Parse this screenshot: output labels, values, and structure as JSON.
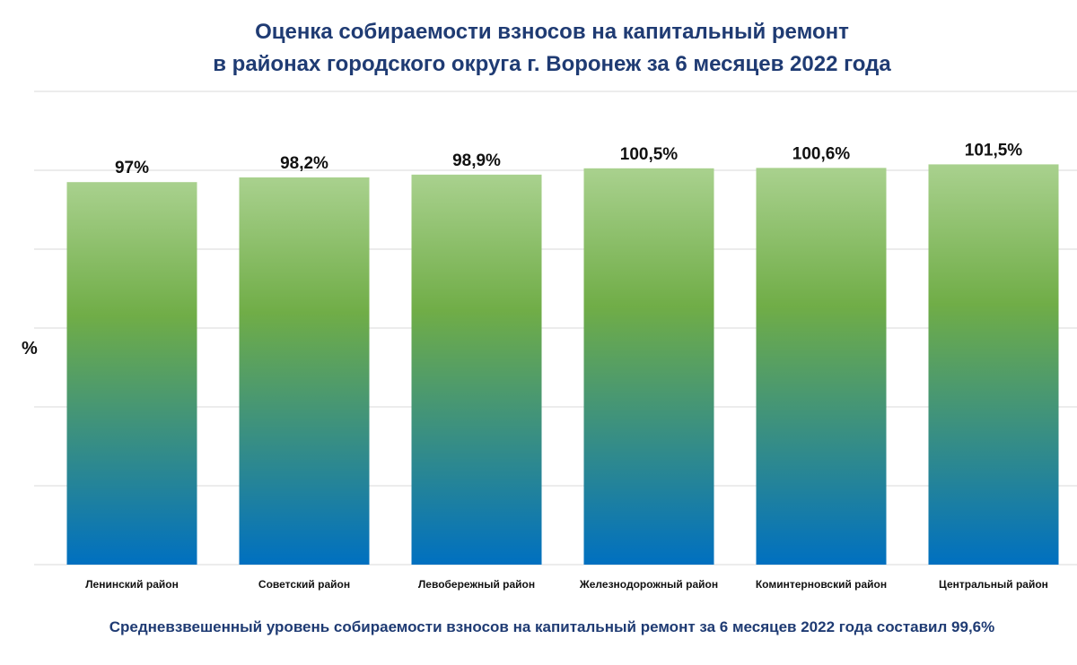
{
  "title_line1": "Оценка собираемости взносов на капитальный ремонт",
  "title_line2": "в районах городского округа г. Воронеж за 6 месяцев 2022 года",
  "footer_note": "Средневзвешенный уровень собираемости взносов на капитальный ремонт за 6 месяцев 2022 года составил 99,6%",
  "colors": {
    "bar_top": "#a9d18e",
    "bar_mid": "#70ad47",
    "bar_bottom": "#0070c0",
    "title": "#1f3b73",
    "grid": "#d9d9d9"
  },
  "chart_data": {
    "type": "bar",
    "ylabel": "%",
    "categories": [
      "Ленинский район",
      "Советский район",
      "Левобережный район",
      "Железнодорожный район",
      "Коминтерновский район",
      "Центральный район"
    ],
    "values": [
      97,
      98.2,
      98.9,
      100.5,
      100.6,
      101.5
    ],
    "data_labels": [
      "97%",
      "98,2%",
      "98,9%",
      "100,5%",
      "100,6%",
      "101,5%"
    ],
    "ylim": [
      0,
      120
    ],
    "grid": true,
    "legend": "none"
  }
}
